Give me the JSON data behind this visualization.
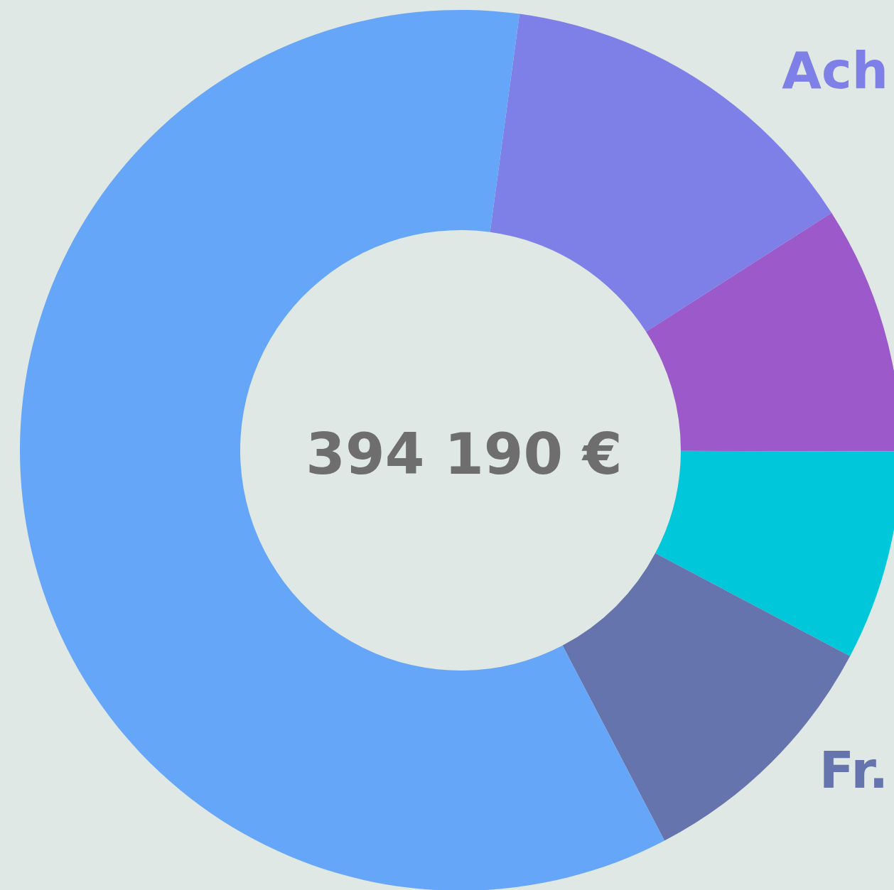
{
  "chart_data": {
    "type": "donut",
    "title": "394 190 €",
    "categories": [
      "Ach",
      null,
      null,
      "Fr.",
      null
    ],
    "values": [
      13.8,
      9.1,
      7.7,
      9.6,
      59.8
    ],
    "colors": [
      "#7e80e7",
      "#9b59c9",
      "#00c8da",
      "#6674ae",
      "#66a6f8"
    ],
    "legend": false
  }
}
